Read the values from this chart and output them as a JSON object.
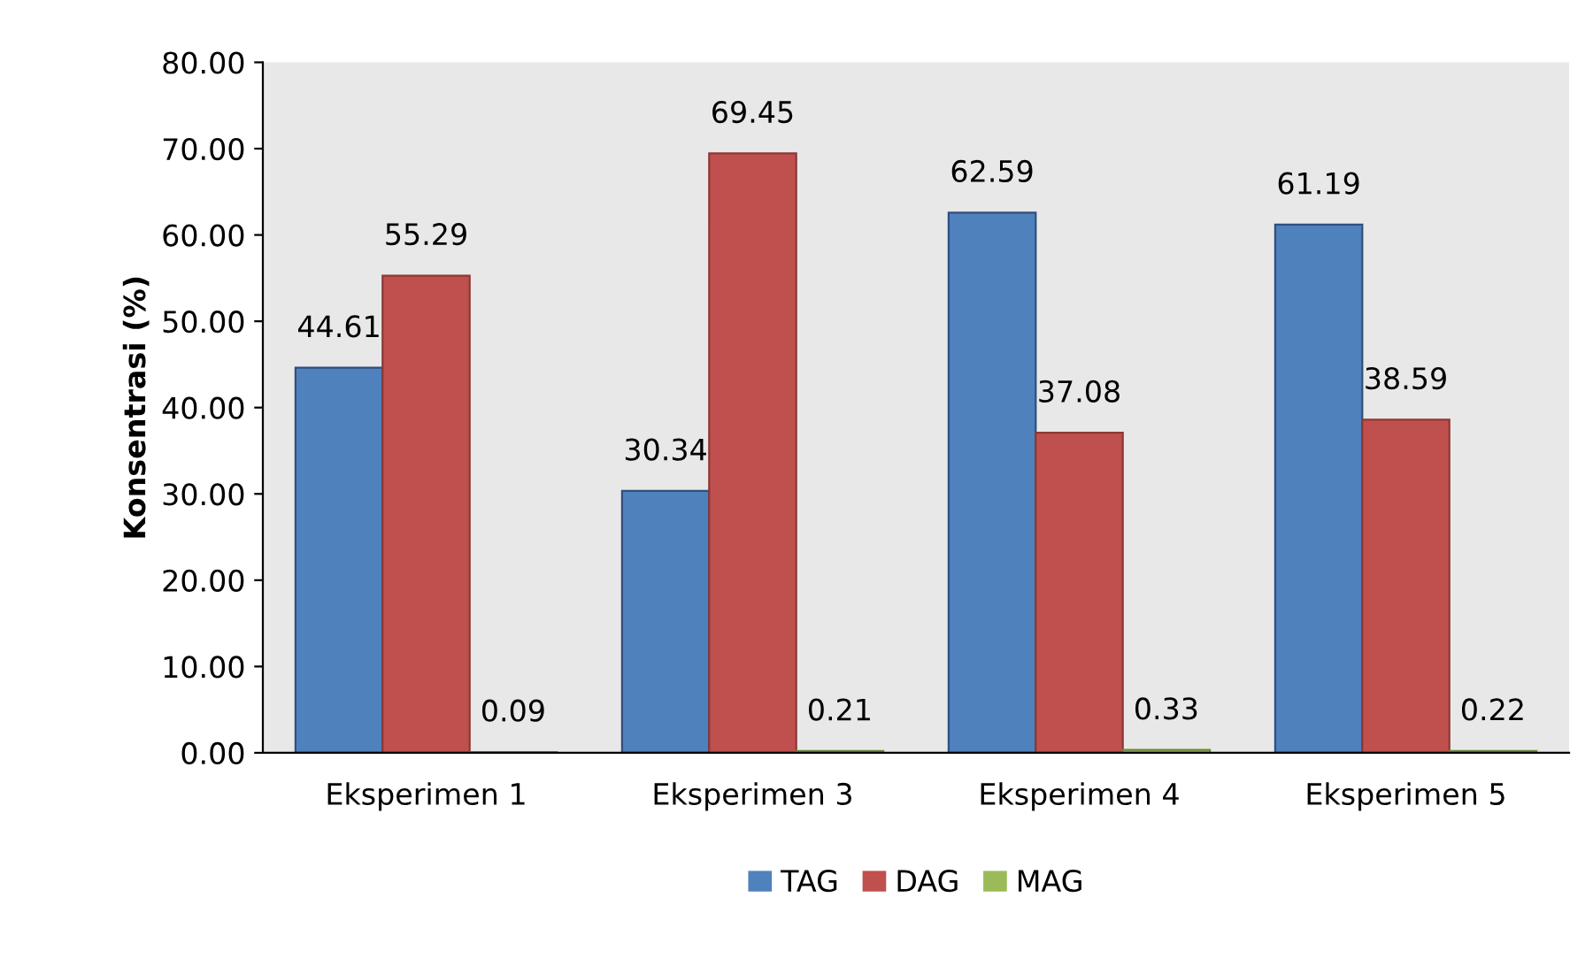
{
  "chart_data": {
    "type": "bar",
    "ylabel": "Konsentrasi (%)",
    "categories": [
      "Eksperimen 1",
      "Eksperimen 3",
      "Eksperimen 4",
      "Eksperimen 5"
    ],
    "series": [
      {
        "name": "TAG",
        "color": "#4f81bd",
        "values": [
          44.61,
          30.34,
          62.59,
          61.19
        ]
      },
      {
        "name": "DAG",
        "color": "#c0504d",
        "values": [
          55.29,
          69.45,
          37.08,
          38.59
        ]
      },
      {
        "name": "MAG",
        "color": "#9bbb59",
        "values": [
          0.09,
          0.21,
          0.33,
          0.22
        ]
      }
    ],
    "ylim": [
      0,
      80
    ],
    "yticks": [
      {
        "value": 0,
        "label": "0.00"
      },
      {
        "value": 10,
        "label": "10.00"
      },
      {
        "value": 20,
        "label": "20.00"
      },
      {
        "value": 30,
        "label": "30.00"
      },
      {
        "value": 40,
        "label": "40.00"
      },
      {
        "value": 50,
        "label": "50.00"
      },
      {
        "value": 60,
        "label": "60.00"
      },
      {
        "value": 70,
        "label": "70.00"
      },
      {
        "value": 80,
        "label": "80.00"
      }
    ],
    "data_labels": true,
    "legend": "bottom",
    "grid": false
  }
}
